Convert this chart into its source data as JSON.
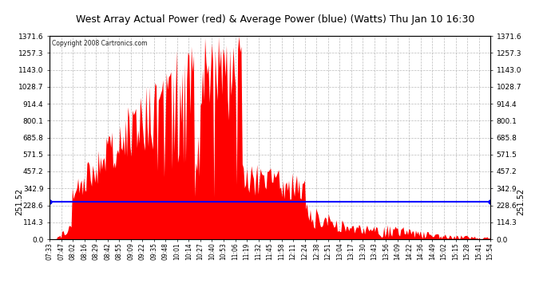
{
  "title": "West Array Actual Power (red) & Average Power (blue) (Watts) Thu Jan 10 16:30",
  "copyright": "Copyright 2008 Cartronics.com",
  "average_value": 251.52,
  "y_max": 1371.6,
  "y_ticks": [
    0.0,
    114.3,
    228.6,
    342.9,
    457.2,
    571.5,
    685.8,
    800.1,
    914.4,
    1028.7,
    1143.0,
    1257.3,
    1371.6
  ],
  "background_color": "#ffffff",
  "grid_color": "#aaaaaa",
  "bar_color": "#ff0000",
  "avg_line_color": "#0000ff",
  "title_bg_color": "#c8c8c8",
  "x_labels": [
    "07:33",
    "07:47",
    "08:02",
    "08:16",
    "08:29",
    "08:42",
    "08:55",
    "09:09",
    "09:22",
    "09:35",
    "09:48",
    "10:01",
    "10:14",
    "10:27",
    "10:40",
    "10:53",
    "11:06",
    "11:19",
    "11:32",
    "11:45",
    "11:58",
    "12:11",
    "12:24",
    "12:38",
    "12:51",
    "13:04",
    "13:17",
    "13:30",
    "13:43",
    "13:56",
    "14:09",
    "14:22",
    "14:36",
    "14:49",
    "15:02",
    "15:15",
    "15:28",
    "15:41",
    "15:54"
  ]
}
